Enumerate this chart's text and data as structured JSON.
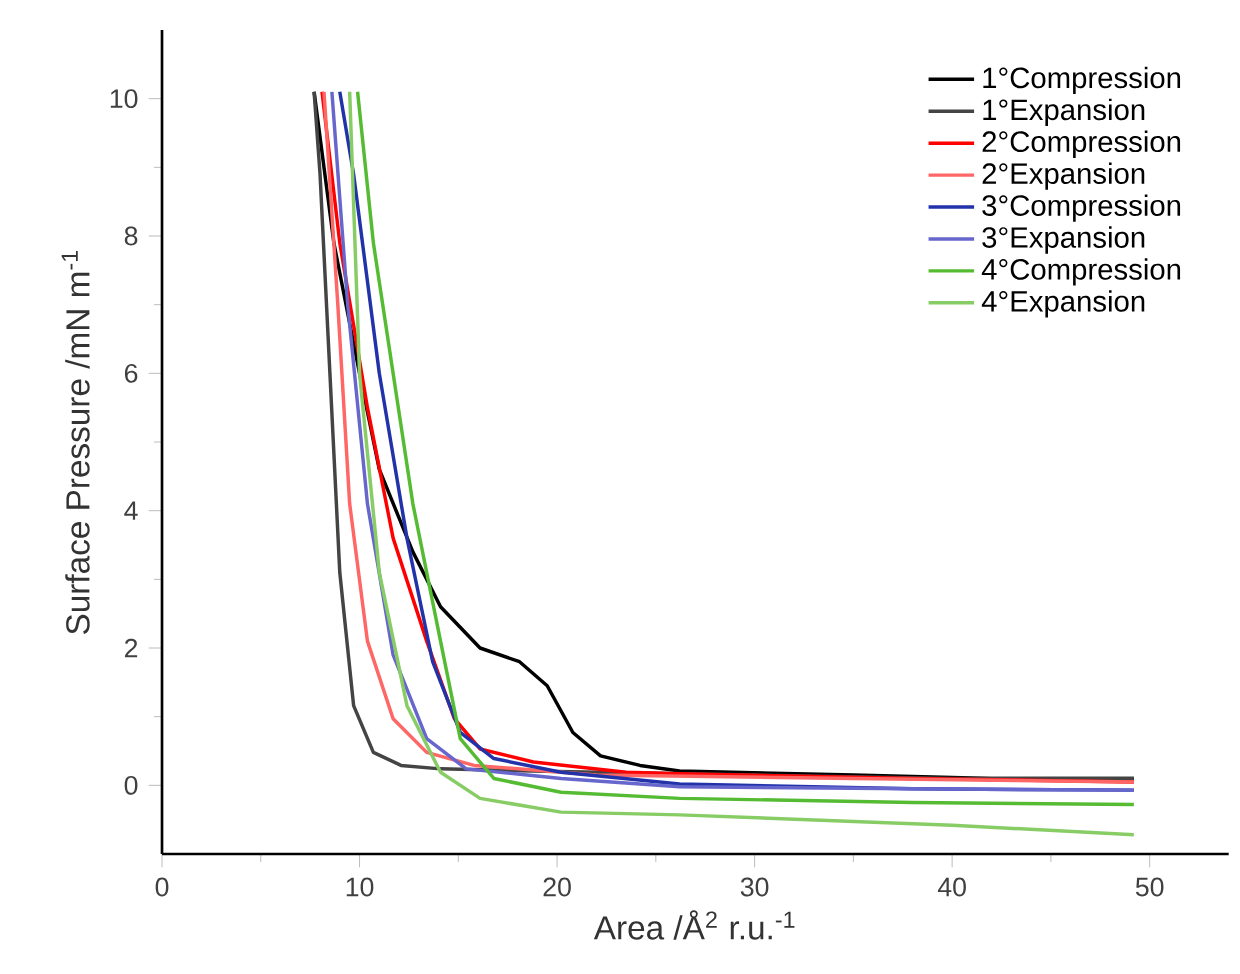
{
  "chart_data": {
    "type": "line",
    "xlabel": "Area /Å$^{2}$ r.u.$^{-1}$",
    "ylabel": "Surface Pressure /mN m$^{-1}$",
    "xlim": [
      0,
      54
    ],
    "ylim": [
      -1,
      11
    ],
    "xticks": [
      0,
      10,
      20,
      30,
      40,
      50
    ],
    "yticks": [
      0,
      2,
      4,
      6,
      8,
      10
    ],
    "grid": false,
    "legend": "top right",
    "marker": "none",
    "line_style": "solid",
    "series": [
      {
        "name": "1°Compression",
        "color": "#000000",
        "x": [
          7.7,
          8.7,
          10.0,
          11.0,
          12.7,
          14.1,
          16.1,
          18.1,
          19.5,
          20.8,
          22.2,
          24.2,
          26.2,
          35,
          42,
          49.2
        ],
        "values": [
          10.1,
          7.9,
          6.0,
          4.6,
          3.4,
          2.6,
          2.0,
          1.8,
          1.45,
          0.77,
          0.43,
          0.29,
          0.21,
          0.15,
          0.1,
          0.1
        ]
      },
      {
        "name": "1°Expansion",
        "color": "#444444",
        "x": [
          7.7,
          8.0,
          8.5,
          9.0,
          9.7,
          10.7,
          12.1,
          14.1,
          20,
          30,
          40,
          49.2
        ],
        "values": [
          10.1,
          8.9,
          6.0,
          3.1,
          1.16,
          0.48,
          0.29,
          0.24,
          0.2,
          0.15,
          0.1,
          0.1
        ]
      },
      {
        "name": "2°Compression",
        "color": "#ff0000",
        "x": [
          8.1,
          9.0,
          10.4,
          11.7,
          13.4,
          14.8,
          16.1,
          18.8,
          23.5,
          26.2,
          38,
          49.2
        ],
        "values": [
          10.1,
          7.9,
          5.5,
          3.6,
          2.1,
          0.97,
          0.53,
          0.34,
          0.19,
          0.17,
          0.1,
          0.05
        ]
      },
      {
        "name": "2°Expansion",
        "color": "#ff6666",
        "x": [
          8.2,
          8.9,
          9.5,
          10.4,
          11.7,
          13.4,
          15.8,
          22,
          35,
          49.2
        ],
        "values": [
          10.1,
          7.0,
          4.1,
          2.1,
          0.97,
          0.48,
          0.29,
          0.15,
          0.1,
          0.05
        ]
      },
      {
        "name": "3°Compression",
        "color": "#2233aa",
        "x": [
          9.0,
          9.7,
          11.0,
          12.4,
          13.7,
          15.1,
          16.8,
          20.2,
          26.2,
          38,
          49.2
        ],
        "values": [
          10.1,
          8.9,
          6.0,
          3.6,
          1.8,
          0.77,
          0.39,
          0.19,
          0.02,
          -0.05,
          -0.07
        ]
      },
      {
        "name": "3°Expansion",
        "color": "#6666cc",
        "x": [
          8.6,
          9.4,
          10.4,
          11.7,
          13.4,
          15.4,
          20.2,
          26.2,
          38,
          49.2
        ],
        "values": [
          10.1,
          7.0,
          4.1,
          1.9,
          0.68,
          0.24,
          0.1,
          -0.02,
          -0.05,
          -0.07
        ]
      },
      {
        "name": "4°Compression",
        "color": "#55bb33",
        "x": [
          9.9,
          10.7,
          11.7,
          12.7,
          14.1,
          15.1,
          16.8,
          20.2,
          26.2,
          38,
          49.2
        ],
        "values": [
          10.1,
          7.9,
          6.0,
          4.1,
          2.1,
          0.68,
          0.1,
          -0.1,
          -0.19,
          -0.25,
          -0.28
        ]
      },
      {
        "name": "4°Expansion",
        "color": "#88cc66",
        "x": [
          9.5,
          10.0,
          11.0,
          12.4,
          14.1,
          16.1,
          20.2,
          26.2,
          40,
          49.2
        ],
        "values": [
          10.1,
          6.0,
          3.1,
          1.16,
          0.19,
          -0.19,
          -0.39,
          -0.43,
          -0.58,
          -0.72
        ]
      }
    ]
  }
}
